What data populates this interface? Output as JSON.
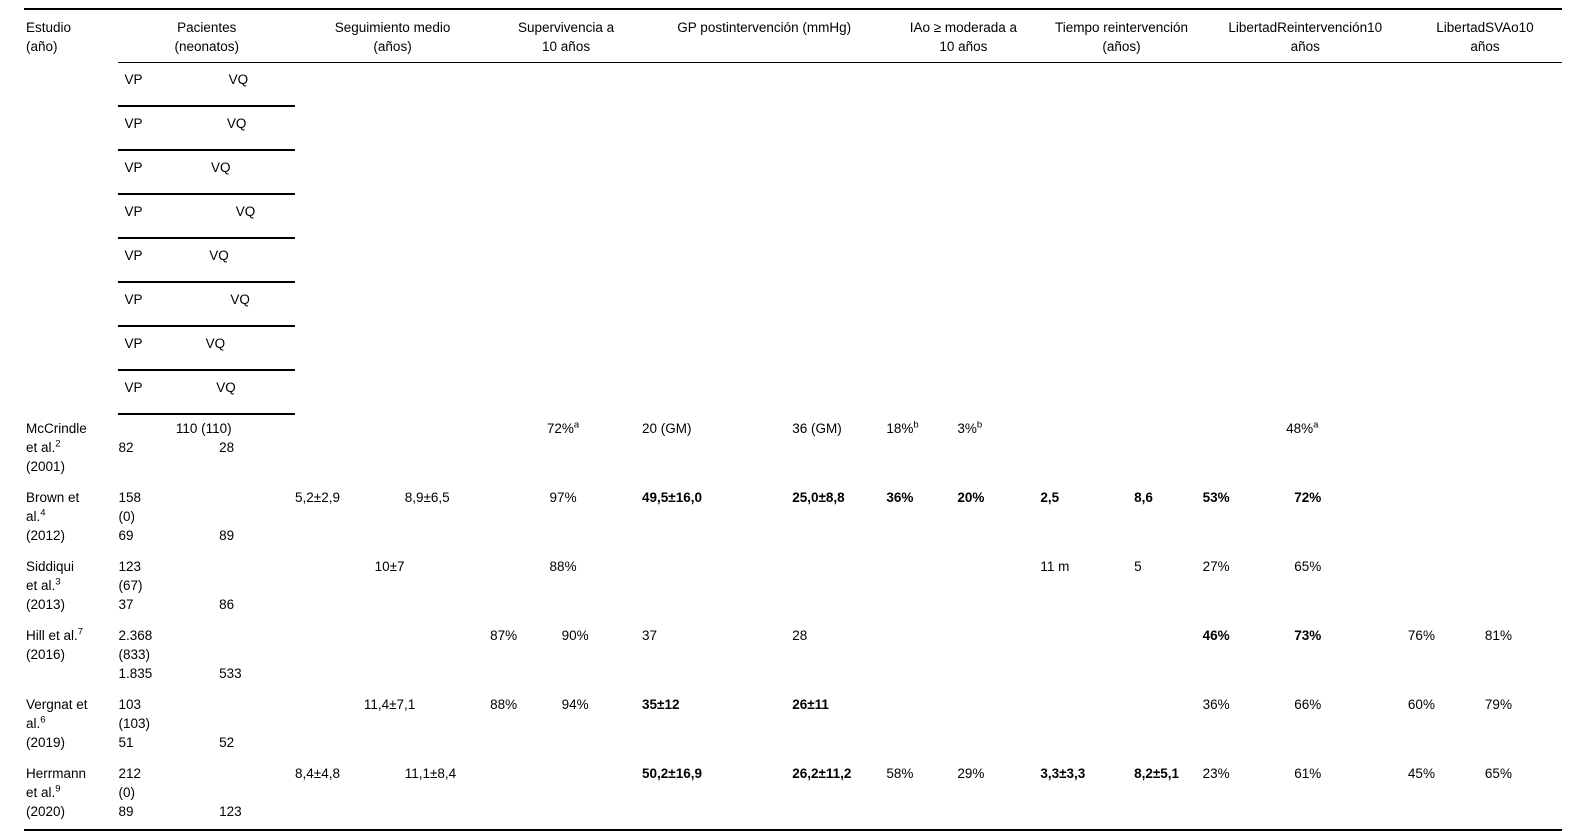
{
  "header": {
    "study": [
      "Estudio",
      "(año)"
    ],
    "groups": [
      {
        "key": "pacientes",
        "lines": [
          "Pacientes",
          "(neonatos)"
        ],
        "sub": [
          "VP",
          "VQ"
        ]
      },
      {
        "key": "seguimiento",
        "lines": [
          "Seguimiento medio",
          "(años)"
        ],
        "sub": [
          "VP",
          "VQ"
        ]
      },
      {
        "key": "supervivencia",
        "lines": [
          "Supervivencia a",
          "10 años"
        ],
        "sub": [
          "VP",
          "VQ"
        ]
      },
      {
        "key": "gp",
        "lines": [
          "GP postintervención (mmHg)"
        ],
        "sub": [
          "VP",
          "VQ"
        ]
      },
      {
        "key": "iao",
        "lines": [
          "IAo ≥ moderada a",
          "10 años"
        ],
        "sub": [
          "VP",
          "VQ"
        ]
      },
      {
        "key": "tiempo",
        "lines": [
          "Tiempo reintervención",
          "(años)"
        ],
        "sub": [
          "VP",
          "VQ"
        ]
      },
      {
        "key": "lib_reint",
        "lines": [
          "LibertadReintervención10",
          "años"
        ],
        "sub": [
          "VP",
          "VQ"
        ]
      },
      {
        "key": "lib_svao",
        "lines": [
          "LibertadSVAo10",
          "años"
        ],
        "sub": [
          "VP",
          "VQ"
        ]
      }
    ]
  },
  "rows": [
    {
      "study": [
        {
          "t": "McCrindle"
        },
        {
          "t": "et al.",
          "s": "2"
        },
        {
          "t": "(2001)"
        }
      ],
      "cells": {
        "pacientes": [
          {
            "span": "110 (110)"
          },
          {
            "vp": "82",
            "vq": "28"
          }
        ],
        "seguimiento": [],
        "supervivencia": [
          {
            "span": "72%",
            "s": "a"
          }
        ],
        "gp": [
          {
            "vp": "20 (GM)",
            "vq": "36 (GM)"
          }
        ],
        "iao": [
          {
            "vp": "18%",
            "vps": "b",
            "vq": "3%",
            "vqs": "b"
          }
        ],
        "tiempo": [],
        "lib_reint": [
          {
            "span": "48%",
            "s": "a"
          }
        ],
        "lib_svao": []
      }
    },
    {
      "study": [
        {
          "t": "Brown et"
        },
        {
          "t": "al.",
          "s": "4"
        },
        {
          "t": "(2012)"
        }
      ],
      "cells": {
        "pacientes": [
          {
            "vp": "158",
            "vq": ""
          },
          {
            "vp": "(0)",
            "vq": ""
          },
          {
            "vp": "69",
            "vq": "89"
          }
        ],
        "seguimiento": [
          {
            "vp": "5,2±2,9",
            "vq": "8,9±6,5"
          }
        ],
        "supervivencia": [
          {
            "span": "97%"
          }
        ],
        "gp": [
          {
            "vp": "49,5±16,0",
            "vq": "25,0±8,8",
            "bold": true
          }
        ],
        "iao": [
          {
            "vp": "36%",
            "vq": "20%",
            "bold": true
          }
        ],
        "tiempo": [
          {
            "vp": "2,5",
            "vq": "8,6",
            "bold": true
          }
        ],
        "lib_reint": [
          {
            "vp": "53%",
            "vq": "72%",
            "bold": true
          }
        ],
        "lib_svao": []
      }
    },
    {
      "study": [
        {
          "t": "Siddiqui"
        },
        {
          "t": "et al.",
          "s": "3"
        },
        {
          "t": "(2013)"
        }
      ],
      "cells": {
        "pacientes": [
          {
            "vp": "123",
            "vq": ""
          },
          {
            "vp": "(67)",
            "vq": ""
          },
          {
            "vp": "37",
            "vq": "86"
          }
        ],
        "seguimiento": [
          {
            "span": "10±7"
          }
        ],
        "supervivencia": [
          {
            "span": "88%"
          }
        ],
        "gp": [],
        "iao": [],
        "tiempo": [
          {
            "vp": "11 m",
            "vq": "5"
          }
        ],
        "lib_reint": [
          {
            "vp": "27%",
            "vq": "65%"
          }
        ],
        "lib_svao": []
      }
    },
    {
      "study": [
        {
          "t": "Hill et al.",
          "s": "7"
        },
        {
          "t": "(2016)"
        }
      ],
      "cells": {
        "pacientes": [
          {
            "vp": "2.368",
            "vq": ""
          },
          {
            "vp": "(833)",
            "vq": ""
          },
          {
            "vp": "1.835",
            "vq": "533"
          }
        ],
        "seguimiento": [],
        "supervivencia": [
          {
            "vp": "87%",
            "vq": "90%"
          }
        ],
        "gp": [
          {
            "vp": "37",
            "vq": "28"
          }
        ],
        "iao": [],
        "tiempo": [],
        "lib_reint": [
          {
            "vp": "46%",
            "vq": "73%",
            "bold": true
          }
        ],
        "lib_svao": [
          {
            "vp": "76%",
            "vq": "81%"
          }
        ]
      }
    },
    {
      "study": [
        {
          "t": "Vergnat et"
        },
        {
          "t": "al.",
          "s": "6"
        },
        {
          "t": "(2019)"
        }
      ],
      "cells": {
        "pacientes": [
          {
            "vp": "103",
            "vq": ""
          },
          {
            "vp": "(103)",
            "vq": ""
          },
          {
            "vp": "51",
            "vq": "52"
          }
        ],
        "seguimiento": [
          {
            "span": "11,4±7,1"
          }
        ],
        "supervivencia": [
          {
            "vp": "88%",
            "vq": "94%"
          }
        ],
        "gp": [
          {
            "vp": "35±12",
            "vq": "26±11",
            "bold": true
          }
        ],
        "iao": [],
        "tiempo": [],
        "lib_reint": [
          {
            "vp": "36%",
            "vq": "66%"
          }
        ],
        "lib_svao": [
          {
            "vp": "60%",
            "vq": "79%"
          }
        ]
      }
    },
    {
      "study": [
        {
          "t": "Herrmann"
        },
        {
          "t": "et al.",
          "s": "9"
        },
        {
          "t": "(2020)"
        }
      ],
      "cells": {
        "pacientes": [
          {
            "vp": "212",
            "vq": ""
          },
          {
            "vp": "(0)",
            "vq": ""
          },
          {
            "vp": "89",
            "vq": "123"
          }
        ],
        "seguimiento": [
          {
            "vp": "8,4±4,8",
            "vq": "11,1±8,4"
          }
        ],
        "supervivencia": [],
        "gp": [
          {
            "vp": "50,2±16,9",
            "vq": "26,2±11,2",
            "bold": true
          }
        ],
        "iao": [
          {
            "vp": "58%",
            "vq": "29%"
          }
        ],
        "tiempo": [
          {
            "vp": "3,3±3,3",
            "vq": "8,2±5,1",
            "bold": true
          }
        ],
        "lib_reint": [
          {
            "vp": "23%",
            "vq": "61%"
          }
        ],
        "lib_svao": [
          {
            "vp": "45%",
            "vq": "65%"
          }
        ]
      }
    }
  ]
}
